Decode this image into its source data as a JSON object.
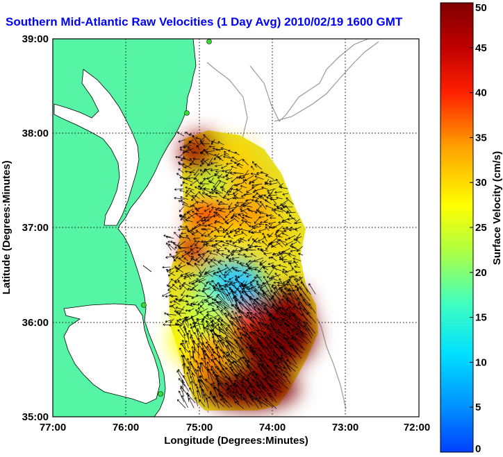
{
  "title": "Southern Mid-Atlantic Raw Velocities (1 Day Avg) 2010/02/19 1600 GMT",
  "xlabel": "Longitude (Degrees:Minutes)",
  "ylabel": "Latitude (Degrees:Minutes)",
  "colorbar_label": "Surface Velocity (cm/s)",
  "x_ticks": [
    "77:00",
    "76:00",
    "75:00",
    "74:00",
    "73:00",
    "72:00"
  ],
  "y_ticks": [
    "39:00",
    "38:00",
    "37:00",
    "36:00",
    "35:00"
  ],
  "colorbar_ticks": [
    "0",
    "5",
    "10",
    "15",
    "20",
    "25",
    "30",
    "35",
    "40",
    "45",
    "50"
  ],
  "colors": {
    "land": "#55f5a5",
    "title": "#0000ff",
    "grid": "#000000",
    "bathymetry": "#999999",
    "vector": "#000000"
  },
  "chart_data": {
    "type": "heatmap",
    "title": "Southern Mid-Atlantic Raw Velocities (1 Day Avg) 2010/02/19 1600 GMT",
    "xlabel": "Longitude (Degrees:Minutes)",
    "ylabel": "Latitude (Degrees:Minutes)",
    "xlim": [
      -77,
      -72
    ],
    "ylim": [
      35,
      39
    ],
    "colorbar": {
      "label": "Surface Velocity (cm/s)",
      "range": [
        0,
        50
      ],
      "colormap": "jet"
    },
    "grid": true,
    "field": [
      {
        "lon": -74.95,
        "lat": 37.75,
        "speed": 48
      },
      {
        "lon": -74.7,
        "lat": 37.75,
        "speed": 35
      },
      {
        "lon": -74.4,
        "lat": 37.65,
        "speed": 24
      },
      {
        "lon": -74.1,
        "lat": 37.6,
        "speed": 30
      },
      {
        "lon": -74.9,
        "lat": 37.45,
        "speed": 40
      },
      {
        "lon": -74.55,
        "lat": 37.4,
        "speed": 25
      },
      {
        "lon": -74.2,
        "lat": 37.3,
        "speed": 35
      },
      {
        "lon": -74.95,
        "lat": 37.2,
        "speed": 45
      },
      {
        "lon": -74.6,
        "lat": 37.1,
        "speed": 22
      },
      {
        "lon": -74.25,
        "lat": 37.05,
        "speed": 30
      },
      {
        "lon": -74.9,
        "lat": 36.85,
        "speed": 35
      },
      {
        "lon": -74.5,
        "lat": 36.75,
        "speed": 18
      },
      {
        "lon": -74.9,
        "lat": 36.5,
        "speed": 22
      },
      {
        "lon": -74.6,
        "lat": 36.45,
        "speed": 12
      },
      {
        "lon": -74.35,
        "lat": 36.5,
        "speed": 12
      },
      {
        "lon": -74.9,
        "lat": 36.2,
        "speed": 25
      },
      {
        "lon": -74.6,
        "lat": 36.15,
        "speed": 20
      },
      {
        "lon": -74.3,
        "lat": 36.1,
        "speed": 40
      },
      {
        "lon": -74.0,
        "lat": 36.0,
        "speed": 50
      },
      {
        "lon": -73.8,
        "lat": 36.0,
        "speed": 50
      },
      {
        "lon": -75.0,
        "lat": 35.85,
        "speed": 30
      },
      {
        "lon": -74.6,
        "lat": 35.7,
        "speed": 45
      },
      {
        "lon": -74.2,
        "lat": 35.6,
        "speed": 50
      },
      {
        "lon": -73.9,
        "lat": 35.6,
        "speed": 50
      },
      {
        "lon": -74.8,
        "lat": 35.4,
        "speed": 50
      },
      {
        "lon": -74.4,
        "lat": 35.3,
        "speed": 50
      },
      {
        "lon": -74.0,
        "lat": 35.3,
        "speed": 50
      }
    ]
  }
}
